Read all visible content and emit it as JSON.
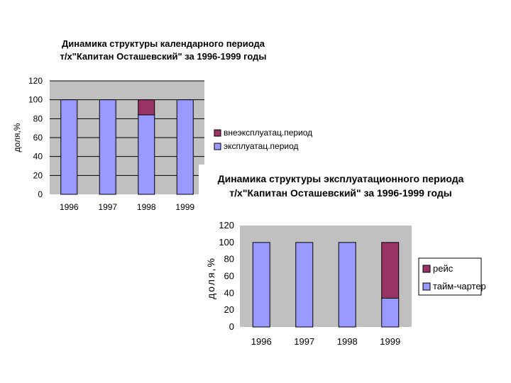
{
  "chart_data": [
    {
      "type": "bar",
      "stacked": true,
      "title_lines": [
        "Динамика структуры календарного периода",
        "т/х\"Капитан Осташевский\" за 1996-1999 годы"
      ],
      "xlabel": "",
      "ylabel": "доля,%",
      "categories": [
        "1996",
        "1997",
        "1998",
        "1999"
      ],
      "series": [
        {
          "name": "эксплуатац.период",
          "values": [
            100,
            100,
            84,
            100
          ],
          "color": "#9999ff"
        },
        {
          "name": "внеэксплуатац.период",
          "values": [
            0,
            0,
            16,
            0
          ],
          "color": "#993366"
        }
      ],
      "ylim": [
        0,
        120
      ],
      "yticks": [
        "0",
        "20",
        "40",
        "60",
        "80",
        "100",
        "120"
      ],
      "grid": "horizontal",
      "legend_position": "right",
      "legend_order": [
        "внеэксплуатац.период",
        "эксплуатац.период"
      ],
      "background": "#c0c0c0"
    },
    {
      "type": "bar",
      "stacked": true,
      "title_lines": [
        "Динамика структуры эксплуатационного периода",
        "т/х\"Капитан Осташевский\" за 1996-1999 годы"
      ],
      "xlabel": "",
      "ylabel": "доля,%",
      "categories": [
        "1996",
        "1997",
        "1998",
        "1999"
      ],
      "series": [
        {
          "name": "тайм-чартер",
          "values": [
            100,
            100,
            100,
            34
          ],
          "color": "#9999ff"
        },
        {
          "name": "рейс",
          "values": [
            0,
            0,
            0,
            66
          ],
          "color": "#993366"
        }
      ],
      "ylim": [
        0,
        120
      ],
      "yticks": [
        "0",
        "20",
        "40",
        "60",
        "80",
        "100",
        "120"
      ],
      "grid": "none",
      "legend_position": "right",
      "legend_order": [
        "рейс",
        "тайм-чартер"
      ],
      "background": "#c0c0c0"
    }
  ]
}
